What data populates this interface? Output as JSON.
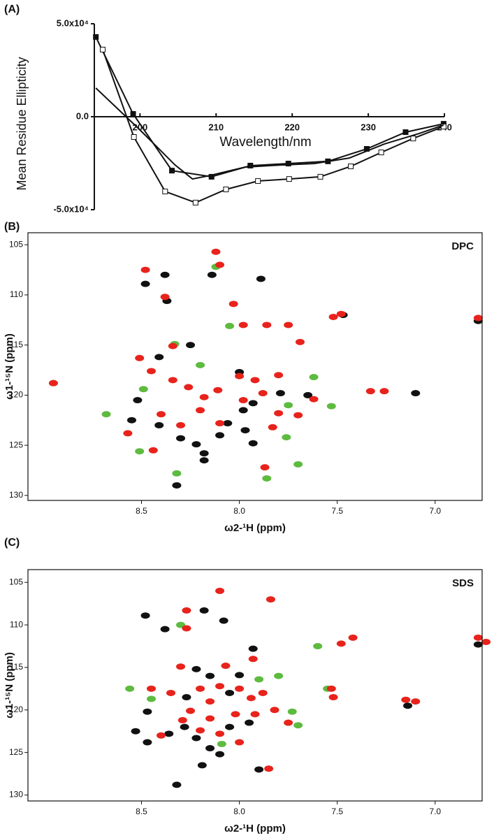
{
  "chart_data": [
    {
      "type": "line",
      "panel": "(A)",
      "xlabel": "Wavelength/nm",
      "ylabel": "Mean Residue Ellipticity",
      "xlim": [
        194,
        240
      ],
      "ylim": [
        -50000,
        50000
      ],
      "xticks": [
        200,
        210,
        220,
        230,
        240
      ],
      "yticks": [
        {
          "value": 50000,
          "label": "5.0x10⁴"
        },
        {
          "value": 0,
          "label": "0.0"
        },
        {
          "value": -50000,
          "label": "-5.0x10⁴"
        }
      ],
      "series": [
        {
          "color": "#111111",
          "marker": "filled-square",
          "x": [
            194.2,
            199.1,
            204.2,
            209.4,
            214.5,
            219.5,
            224.7,
            229.8,
            234.9,
            239.9
          ],
          "values": [
            42900,
            1500,
            -29000,
            -32300,
            -26300,
            -25200,
            -24000,
            -17300,
            -8300,
            -3800
          ]
        },
        {
          "color": "#111111",
          "marker": "open-square",
          "x": [
            195.1,
            199.2,
            203.3,
            207.3,
            211.3,
            215.5,
            219.6,
            223.7,
            227.7,
            231.7,
            235.9,
            239.9
          ],
          "values": [
            36100,
            -10900,
            -40200,
            -46200,
            -39100,
            -34600,
            -33500,
            -32300,
            -26700,
            -19200,
            -11700,
            -5300
          ]
        },
        {
          "color": "#111111",
          "marker": "none",
          "x": [
            194.2,
            200,
            204.6,
            206.9,
            209.2,
            213.8,
            218.3,
            222.9,
            227.5,
            232.1,
            236.7,
            239.9
          ],
          "values": [
            15400,
            -7100,
            -25900,
            -33500,
            -31600,
            -27100,
            -26000,
            -25200,
            -22200,
            -14700,
            -9000,
            -4500
          ]
        }
      ]
    },
    {
      "type": "scatter",
      "panel": "(B)",
      "annotation": "DPC",
      "xlabel": "ω2-¹H (ppm)",
      "ylabel": "ω1-¹⁵N (ppm)",
      "xlim": [
        9.08,
        6.76
      ],
      "ylim": [
        130.5,
        103.8
      ],
      "xticks": [
        8.5,
        {
          "value": 8,
          "label": "8.0"
        },
        7.5,
        {
          "value": 7,
          "label": "7.0"
        }
      ],
      "yticks": [
        105,
        110,
        115,
        120,
        125,
        130
      ],
      "series": [
        {
          "color": "#111111",
          "marker": "blob",
          "x": [
            8.48,
            8.38,
            8.14,
            7.89,
            8.37,
            8.41,
            8.52,
            8.55,
            8.41,
            8.3,
            8.22,
            8.18,
            8.18,
            8.32,
            8.1,
            8.06,
            7.98,
            7.93,
            7.79,
            7.65,
            7.47,
            7.1,
            6.78,
            8.0,
            8.25,
            7.93,
            7.97
          ],
          "values": [
            108.9,
            108.0,
            108.0,
            108.4,
            110.6,
            116.2,
            120.5,
            122.5,
            123.0,
            124.3,
            124.9,
            125.8,
            126.5,
            129.0,
            124.0,
            122.8,
            121.5,
            120.8,
            119.8,
            120.0,
            112.0,
            119.8,
            112.6,
            117.7,
            115.0,
            124.8,
            123.5
          ]
        },
        {
          "color": "#5dbb3f",
          "marker": "blob",
          "x": [
            8.95,
            8.68,
            8.51,
            8.33,
            8.05,
            7.7,
            7.53,
            7.76,
            7.62,
            8.12,
            8.49,
            7.86,
            8.32,
            8.2,
            7.75
          ],
          "values": [
            118.8,
            121.9,
            125.6,
            114.9,
            113.1,
            126.9,
            121.1,
            124.2,
            118.2,
            107.2,
            119.4,
            128.3,
            127.8,
            117.0,
            121.0
          ]
        },
        {
          "color": "#e8231c",
          "marker": "blob",
          "x": [
            8.12,
            8.1,
            8.48,
            8.38,
            8.03,
            7.98,
            7.86,
            7.75,
            7.69,
            8.34,
            8.51,
            8.45,
            8.34,
            8.26,
            8.18,
            8.0,
            7.92,
            7.8,
            8.57,
            8.4,
            8.3,
            8.2,
            8.11,
            7.98,
            7.88,
            7.8,
            7.7,
            7.83,
            8.44,
            7.87,
            7.48,
            7.52,
            7.26,
            7.33,
            6.78,
            8.95,
            8.1,
            7.62
          ],
          "values": [
            105.7,
            107.0,
            107.5,
            110.2,
            110.9,
            113.0,
            113.0,
            113.0,
            114.7,
            115.1,
            116.3,
            117.6,
            118.5,
            119.2,
            120.2,
            118.1,
            118.5,
            118.0,
            123.8,
            121.9,
            123.0,
            121.5,
            119.5,
            120.5,
            119.8,
            121.8,
            122.0,
            123.2,
            125.5,
            127.2,
            111.9,
            112.2,
            119.6,
            119.6,
            112.3,
            118.8,
            122.8,
            120.4
          ]
        }
      ]
    },
    {
      "type": "scatter",
      "panel": "(C)",
      "annotation": "SDS",
      "xlabel": "ω2-¹H (ppm)",
      "ylabel": "ω1-¹⁵N (ppm)",
      "xlim": [
        9.08,
        6.76
      ],
      "ylim": [
        130.7,
        103.5
      ],
      "xticks": [
        8.5,
        {
          "value": 8,
          "label": "8.0"
        },
        7.5,
        {
          "value": 7,
          "label": "7.0"
        }
      ],
      "yticks": [
        105,
        110,
        115,
        120,
        125,
        130
      ],
      "series": [
        {
          "color": "#111111",
          "marker": "blob",
          "x": [
            8.48,
            8.38,
            8.18,
            8.08,
            7.93,
            8.47,
            8.53,
            8.47,
            8.36,
            8.28,
            8.22,
            8.15,
            8.1,
            8.19,
            8.32,
            7.9,
            8.05,
            7.95,
            8.15,
            8.22,
            8.0,
            8.27,
            7.14,
            6.78,
            8.05
          ],
          "values": [
            108.9,
            110.5,
            108.3,
            109.5,
            112.8,
            120.2,
            122.5,
            123.8,
            122.8,
            122.0,
            123.3,
            124.5,
            125.2,
            126.5,
            128.8,
            127.0,
            122.0,
            121.5,
            116.0,
            115.2,
            115.9,
            118.5,
            119.5,
            112.3,
            118.0
          ]
        },
        {
          "color": "#5dbb3f",
          "marker": "blob",
          "x": [
            8.56,
            8.45,
            7.9,
            7.7,
            7.55,
            8.09,
            7.73,
            8.3,
            7.6,
            7.8
          ],
          "values": [
            117.5,
            118.7,
            116.4,
            121.8,
            117.5,
            124.0,
            120.2,
            110.0,
            112.5,
            116.0
          ]
        },
        {
          "color": "#e8231c",
          "marker": "blob",
          "x": [
            8.1,
            8.27,
            7.84,
            8.27,
            8.3,
            8.07,
            7.93,
            8.45,
            8.35,
            8.2,
            8.1,
            8.0,
            7.88,
            8.15,
            8.25,
            8.15,
            8.02,
            7.92,
            7.82,
            7.75,
            8.29,
            8.2,
            8.4,
            8.0,
            8.1,
            7.85,
            7.53,
            7.52,
            7.48,
            7.42,
            7.15,
            7.1,
            6.78,
            6.74,
            7.94
          ],
          "values": [
            106.0,
            108.3,
            107.0,
            110.4,
            114.9,
            114.8,
            114.0,
            117.5,
            118.0,
            117.5,
            117.2,
            117.5,
            118.0,
            119.0,
            120.1,
            121.0,
            120.5,
            120.5,
            120.0,
            121.5,
            121.2,
            122.4,
            123.0,
            123.8,
            122.8,
            126.9,
            117.5,
            118.5,
            112.2,
            111.5,
            118.8,
            119.0,
            111.5,
            112.0,
            118.6
          ]
        }
      ]
    }
  ]
}
